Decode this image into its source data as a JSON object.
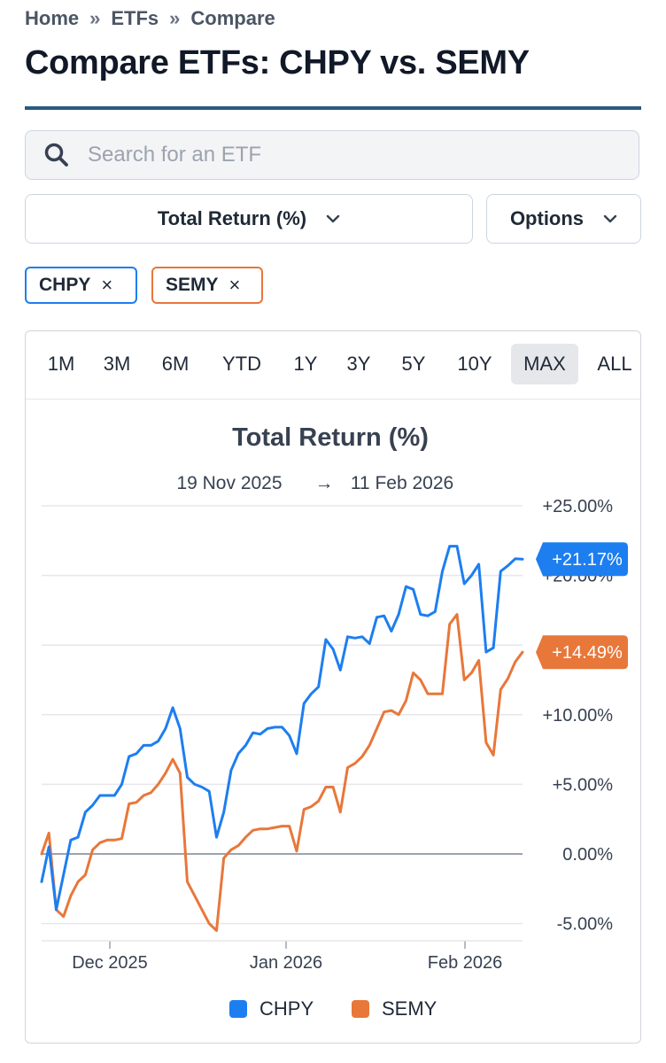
{
  "breadcrumb": {
    "items": [
      "Home",
      "ETFs",
      "Compare"
    ],
    "separator": "»"
  },
  "title": "Compare ETFs: CHPY vs. SEMY",
  "search": {
    "placeholder": "Search for an ETF",
    "value": ""
  },
  "metric_select": {
    "label": "Total Return (%)"
  },
  "options_select": {
    "label": "Options"
  },
  "chips": [
    {
      "label": "CHPY",
      "close": "×",
      "color": "#1d7ef0"
    },
    {
      "label": "SEMY",
      "close": "×",
      "color": "#e8773a"
    }
  ],
  "ranges": [
    "1M",
    "3M",
    "6M",
    "YTD",
    "1Y",
    "3Y",
    "5Y",
    "10Y",
    "MAX",
    "ALL"
  ],
  "active_range": "MAX",
  "chart_data": {
    "type": "line",
    "title": "Total Return (%)",
    "subtitle_start": "19 Nov 2025",
    "subtitle_arrow": "→",
    "subtitle_end": "11 Feb 2026",
    "x_ticks": [
      "Dec 2025",
      "Jan 2026",
      "Feb 2026"
    ],
    "y_ticks": [
      "+25.00%",
      "+20.00%",
      "+15.00%",
      "+10.00%",
      "+5.00%",
      "0.00%",
      "-5.00%"
    ],
    "ylim": [
      -6,
      25
    ],
    "grid": true,
    "legend_position": "bottom",
    "end_labels": [
      "+21.17%",
      "+14.49%"
    ],
    "series": [
      {
        "name": "CHPY",
        "color": "#1d7ef0",
        "values": [
          -2,
          0.5,
          -4,
          -1.5,
          1,
          1.2,
          3,
          3.5,
          4.2,
          4.2,
          4.2,
          5,
          7,
          7.2,
          7.8,
          7.8,
          8.1,
          9,
          10.5,
          9,
          5.5,
          5,
          4.8,
          4.5,
          1.2,
          3,
          6,
          7.2,
          7.8,
          8.7,
          8.6,
          9,
          9.1,
          9.1,
          8.5,
          7.2,
          10.8,
          11.5,
          12,
          15.4,
          14.7,
          13.2,
          15.6,
          15.5,
          15.6,
          15.1,
          17,
          17.1,
          16,
          17.2,
          19.2,
          19,
          17.2,
          17.1,
          17.4,
          20.3,
          22.1,
          22.1,
          19.4,
          20,
          20.8,
          14.5,
          14.8,
          20.3,
          20.7,
          21.2,
          21.17
        ]
      },
      {
        "name": "SEMY",
        "color": "#e8773a",
        "values": [
          0,
          1.5,
          -4,
          -4.5,
          -3,
          -2,
          -1.5,
          0.3,
          0.8,
          1,
          1,
          1.1,
          3.6,
          3.7,
          4.2,
          4.4,
          5,
          5.8,
          6.8,
          5.8,
          -2,
          -3,
          -4,
          -5,
          -5.5,
          -0.3,
          0.3,
          0.6,
          1.2,
          1.7,
          1.8,
          1.8,
          1.9,
          2,
          2,
          0.2,
          3.2,
          3.4,
          3.8,
          4.8,
          4.8,
          3,
          6.2,
          6.5,
          7,
          7.8,
          9,
          10.2,
          10.3,
          10,
          11,
          13,
          12.5,
          11.5,
          11.5,
          11.5,
          16.5,
          17.2,
          12.5,
          13,
          13.9,
          8,
          7.1,
          11.8,
          12.6,
          13.8,
          14.49
        ]
      }
    ]
  }
}
